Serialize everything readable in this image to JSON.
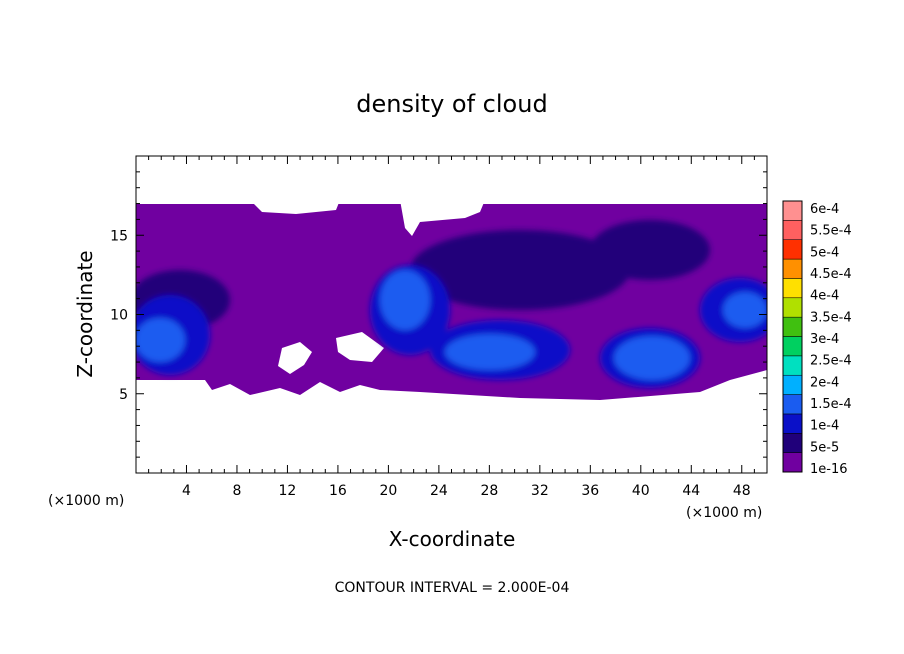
{
  "chart_data": {
    "type": "heatmap",
    "title": "density of cloud",
    "xlabel": "X-coordinate",
    "ylabel": "Z-coordinate",
    "x_unit": "(×1000 m)",
    "x_ticks": [
      4,
      8,
      12,
      16,
      20,
      24,
      28,
      32,
      36,
      40,
      44,
      48
    ],
    "y_ticks": [
      5,
      10,
      15
    ],
    "xlim": [
      0,
      50
    ],
    "ylim": [
      0,
      20
    ],
    "colorbar": {
      "labels": [
        "1e-16",
        "5e-5",
        "1e-4",
        "1.5e-4",
        "2e-4",
        "2.5e-4",
        "3e-4",
        "3.5e-4",
        "4e-4",
        "4.5e-4",
        "5e-4",
        "5.5e-4",
        "6e-4"
      ],
      "colors": [
        "#7000a0",
        "#20007a",
        "#0a10c8",
        "#1a5cf0",
        "#00b0ff",
        "#00e0c0",
        "#00d060",
        "#40c010",
        "#b0e000",
        "#ffe000",
        "#ff9000",
        "#ff3000",
        "#ff6060",
        "#ff9090"
      ]
    },
    "contour_interval": "CONTOUR INTERVAL =  2.000E-04",
    "cloud_layer": {
      "base": 5,
      "top": 17
    },
    "dense_regions": [
      {
        "x": [
          0,
          10
        ],
        "z": [
          5,
          11
        ],
        "level": "1e-4"
      },
      {
        "x": [
          19,
          33
        ],
        "z": [
          5.5,
          13
        ],
        "level": "1.5e-4"
      },
      {
        "x": [
          36,
          43
        ],
        "z": [
          5,
          9
        ],
        "level": "1.5e-4"
      },
      {
        "x": [
          44,
          50
        ],
        "z": [
          8,
          12
        ],
        "level": "1e-4"
      }
    ]
  }
}
